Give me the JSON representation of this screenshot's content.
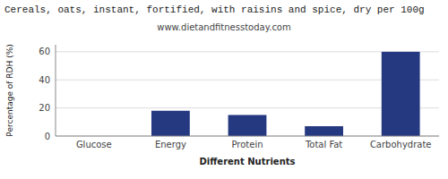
{
  "chart_data": {
    "type": "bar",
    "title": "Cereals, oats, instant, fortified, with raisins and spice, dry per 100g",
    "subtitle": "www.dietandfitnesstoday.com",
    "xlabel": "Different Nutrients",
    "ylabel": "Percentage of RDH (%)",
    "categories": [
      "Glucose",
      "Energy",
      "Protein",
      "Total Fat",
      "Carbohydrate"
    ],
    "values": [
      0,
      18,
      15,
      7,
      60
    ],
    "color": "#253981",
    "ylim": [
      0,
      65
    ],
    "yticks": [
      0,
      20,
      40,
      60
    ],
    "grid": true
  }
}
